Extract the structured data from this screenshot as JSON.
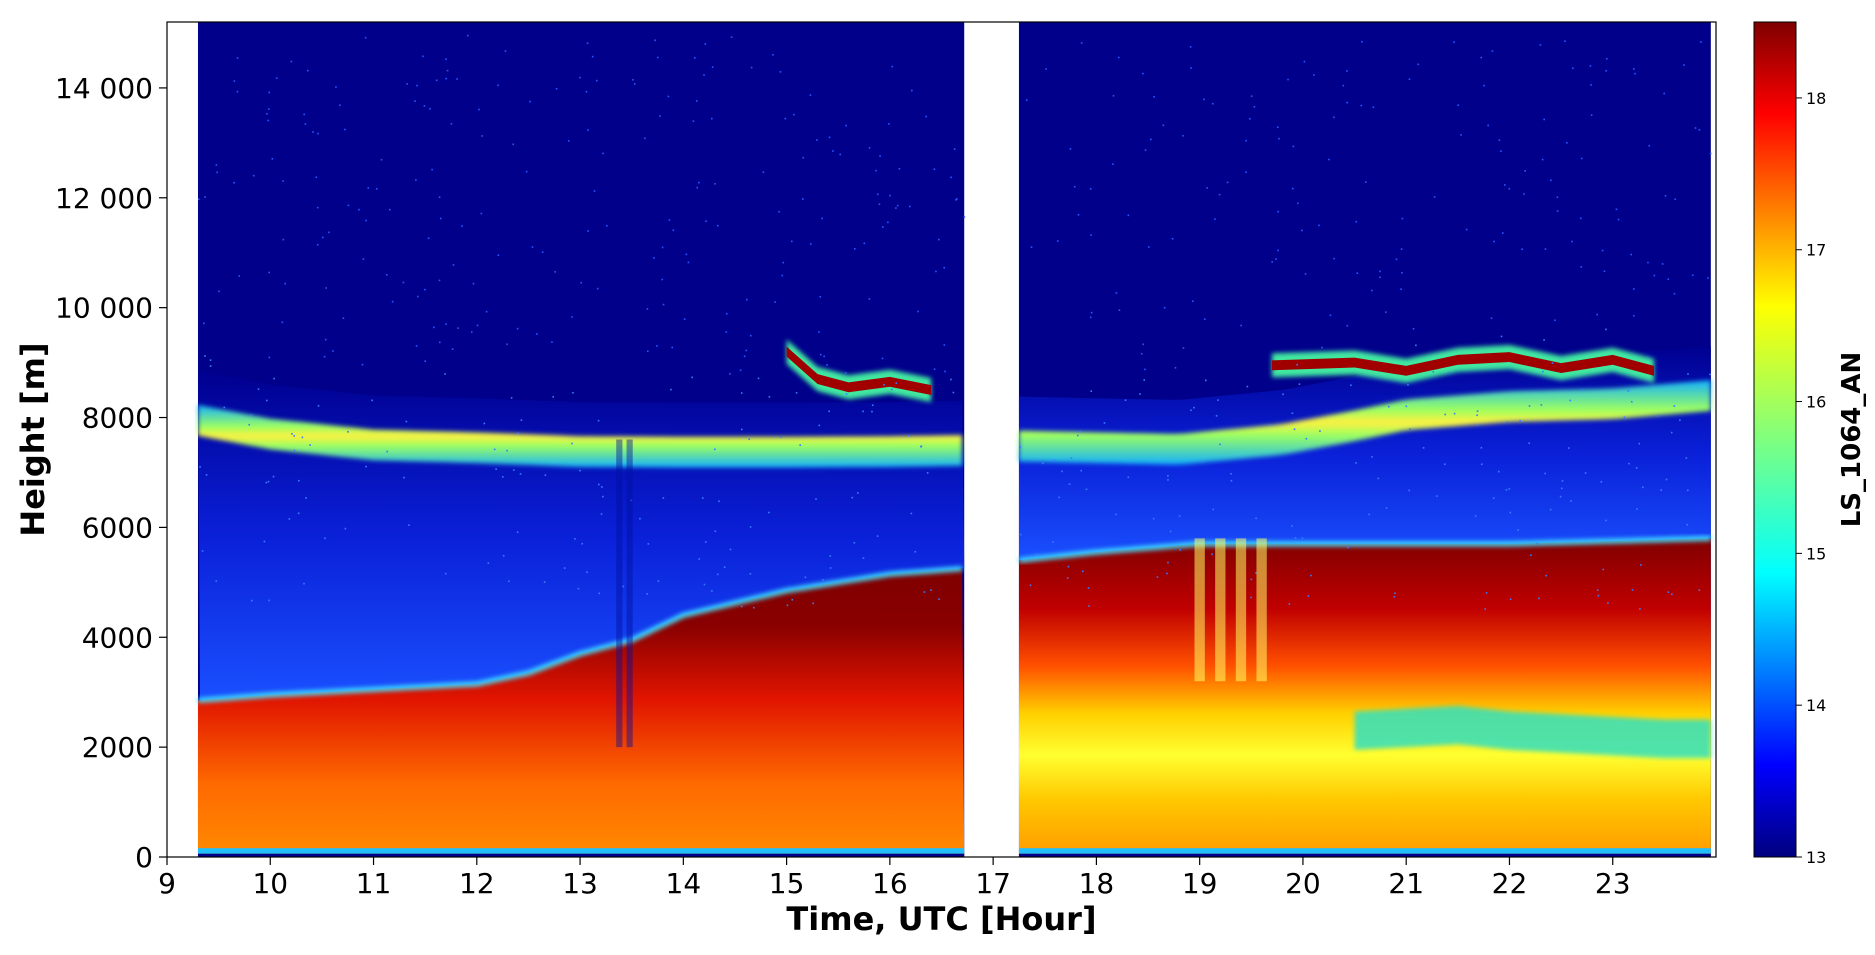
{
  "chart_data": {
    "type": "heatmap",
    "title": "",
    "xlabel": "Time, UTC [Hour]",
    "ylabel": "Height [m]",
    "colorbar_label": "LS_1064_AN",
    "xlim": [
      9,
      24
    ],
    "ylim": [
      0,
      15200
    ],
    "data_range_x": [
      9.3,
      23.95
    ],
    "data_gap_x": [
      16.72,
      17.25
    ],
    "x_ticks": [
      9,
      10,
      11,
      12,
      13,
      14,
      15,
      16,
      17,
      18,
      19,
      20,
      21,
      22,
      23
    ],
    "x_tick_labels": [
      "9",
      "10",
      "11",
      "12",
      "13",
      "14",
      "15",
      "16",
      "17",
      "18",
      "19",
      "20",
      "21",
      "22",
      "23"
    ],
    "y_ticks": [
      0,
      2000,
      4000,
      6000,
      8000,
      10000,
      12000,
      14000
    ],
    "y_tick_labels": [
      "0",
      "2000",
      "4000",
      "6000",
      "8000",
      "10 000",
      "12 000",
      "14 000"
    ],
    "clim": [
      13,
      18.5
    ],
    "colorbar_ticks": [
      13,
      14,
      15,
      16,
      17,
      18
    ],
    "colorbar_tick_labels": [
      "13",
      "14",
      "15",
      "16",
      "17",
      "18"
    ],
    "colormap": "jet",
    "grid": false,
    "features": {
      "boundary_layer_top": {
        "x": [
          9.3,
          10,
          11,
          12,
          12.5,
          13,
          13.5,
          14,
          15,
          16,
          16.7,
          17.25,
          18,
          19,
          20,
          21,
          22,
          23,
          23.95
        ],
        "y": [
          2850,
          2950,
          3050,
          3150,
          3350,
          3700,
          3950,
          4400,
          4850,
          5150,
          5250,
          5400,
          5550,
          5700,
          5700,
          5700,
          5700,
          5750,
          5800
        ]
      },
      "cirrus_layer": {
        "x": [
          9.3,
          10,
          11,
          12,
          13,
          14,
          15,
          16,
          16.7,
          17.25,
          18,
          18.8,
          19.8,
          20.5,
          21,
          22,
          23,
          23.95
        ],
        "y": [
          7950,
          7700,
          7500,
          7450,
          7380,
          7370,
          7370,
          7380,
          7400,
          7480,
          7450,
          7420,
          7600,
          7850,
          8050,
          8200,
          8250,
          8400
        ]
      },
      "upper_cirrus": [
        {
          "x": [
            15.0,
            15.3,
            15.6,
            16.0,
            16.4
          ],
          "y": [
            9200,
            8700,
            8550,
            8650,
            8500
          ]
        },
        {
          "x": [
            19.7,
            20.5,
            21.0,
            21.5,
            22.0,
            22.5,
            23.0,
            23.4
          ],
          "y": [
            8950,
            9000,
            8850,
            9050,
            9100,
            8900,
            9050,
            8850
          ]
        }
      ]
    }
  }
}
